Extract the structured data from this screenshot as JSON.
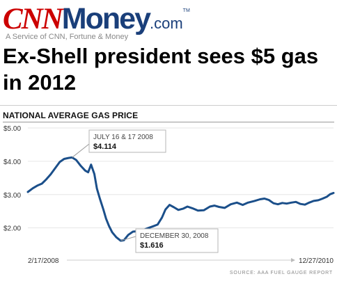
{
  "masthead": {
    "logo_cnn": "CNN",
    "logo_money": "Money",
    "logo_com": ".com",
    "logo_tm": "TM",
    "tagline": "A Service of CNN, Fortune & Money"
  },
  "headline": "Ex-Shell president sees $5 gas in 2012",
  "colors": {
    "line": "#1b4f8a",
    "cnn_red": "#cc0000",
    "money_blue": "#1a3f7a"
  },
  "chart_data": {
    "type": "line",
    "title": "NATIONAL AVERAGE GAS PRICE",
    "xlabel": "",
    "ylabel": "",
    "y_ticks": [
      "$5.00",
      "$4.00",
      "$3.00",
      "$2.00"
    ],
    "y_tick_values": [
      5,
      4,
      3,
      2
    ],
    "ylim": [
      1.2,
      5.0
    ],
    "x_tick_labels": [
      "2/17/2008",
      "12/27/2010"
    ],
    "xlim": [
      "2008-02-17",
      "2010-12-27"
    ],
    "grid": true,
    "source": "SOURCE: AAA FUEL GAUGE REPORT",
    "series": [
      {
        "x": [
          "2008-02-17",
          "2008-03-05",
          "2008-03-20",
          "2008-04-05",
          "2008-04-20",
          "2008-05-05",
          "2008-05-20",
          "2008-06-05",
          "2008-06-20",
          "2008-07-05",
          "2008-07-17",
          "2008-07-31",
          "2008-08-15",
          "2008-08-31",
          "2008-09-10",
          "2008-09-20",
          "2008-10-01",
          "2008-10-10",
          "2008-10-20",
          "2008-11-01",
          "2008-11-10",
          "2008-11-20",
          "2008-12-01",
          "2008-12-15",
          "2008-12-30",
          "2009-01-10",
          "2009-01-25",
          "2009-02-10",
          "2009-02-25",
          "2009-03-15",
          "2009-04-01",
          "2009-04-20",
          "2009-05-05",
          "2009-05-20",
          "2009-06-01",
          "2009-06-15",
          "2009-06-30",
          "2009-07-15",
          "2009-08-01",
          "2009-08-15",
          "2009-09-01",
          "2009-09-20",
          "2009-10-10",
          "2009-10-31",
          "2009-11-15",
          "2009-12-01",
          "2009-12-20",
          "2010-01-10",
          "2010-01-31",
          "2010-02-20",
          "2010-03-10",
          "2010-04-01",
          "2010-04-20",
          "2010-05-05",
          "2010-05-20",
          "2010-06-05",
          "2010-06-20",
          "2010-07-05",
          "2010-07-20",
          "2010-08-05",
          "2010-08-20",
          "2010-09-05",
          "2010-09-20",
          "2010-10-05",
          "2010-10-20",
          "2010-11-05",
          "2010-11-20",
          "2010-12-05",
          "2010-12-15",
          "2010-12-27"
        ],
        "y": [
          3.08,
          3.19,
          3.27,
          3.33,
          3.46,
          3.61,
          3.79,
          3.98,
          4.07,
          4.1,
          4.114,
          4.04,
          3.87,
          3.72,
          3.67,
          3.9,
          3.62,
          3.18,
          2.88,
          2.55,
          2.28,
          2.06,
          1.87,
          1.72,
          1.616,
          1.63,
          1.79,
          1.89,
          1.9,
          1.93,
          1.99,
          2.05,
          2.1,
          2.31,
          2.55,
          2.69,
          2.62,
          2.54,
          2.58,
          2.64,
          2.59,
          2.52,
          2.53,
          2.64,
          2.67,
          2.63,
          2.6,
          2.71,
          2.76,
          2.69,
          2.76,
          2.81,
          2.86,
          2.88,
          2.84,
          2.74,
          2.71,
          2.75,
          2.73,
          2.76,
          2.78,
          2.72,
          2.7,
          2.76,
          2.81,
          2.83,
          2.88,
          2.94,
          3.01,
          3.05
        ]
      }
    ],
    "annotations": [
      {
        "date_text": "JULY 16 & 17 2008",
        "value_text": "$4.114",
        "x": "2008-07-17",
        "y": 4.114
      },
      {
        "date_text": "DECEMBER 30, 2008",
        "value_text": "$1.616",
        "x": "2008-12-30",
        "y": 1.616
      }
    ]
  }
}
